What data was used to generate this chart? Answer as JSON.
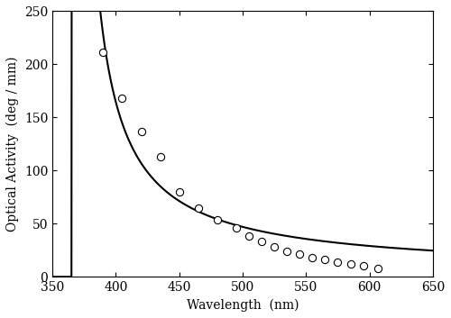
{
  "scatter_x": [
    390,
    405,
    420,
    435,
    450,
    465,
    480,
    495,
    505,
    515,
    525,
    535,
    545,
    555,
    565,
    575,
    585,
    595,
    607
  ],
  "scatter_y": [
    211,
    168,
    137,
    113,
    80,
    65,
    54,
    46,
    38,
    33,
    28,
    24,
    21,
    18,
    16,
    14,
    12,
    10,
    8
  ],
  "fit_lambda0": 310,
  "fit_C": 5200000,
  "xlabel": "Wavelength  (nm)",
  "ylabel": "Optical Activity  (deg / mm)",
  "xlim": [
    350,
    650
  ],
  "ylim": [
    0,
    250
  ],
  "xticks": [
    350,
    400,
    450,
    500,
    550,
    600,
    650
  ],
  "yticks": [
    0,
    50,
    100,
    150,
    200,
    250
  ],
  "scatter_color": "white",
  "scatter_edgecolor": "black",
  "line_color": "black",
  "line_width": 1.5,
  "scatter_size": 35,
  "scatter_linewidth": 0.8,
  "background_color": "white",
  "figure_width": 5.0,
  "figure_height": 3.53,
  "dpi": 100
}
